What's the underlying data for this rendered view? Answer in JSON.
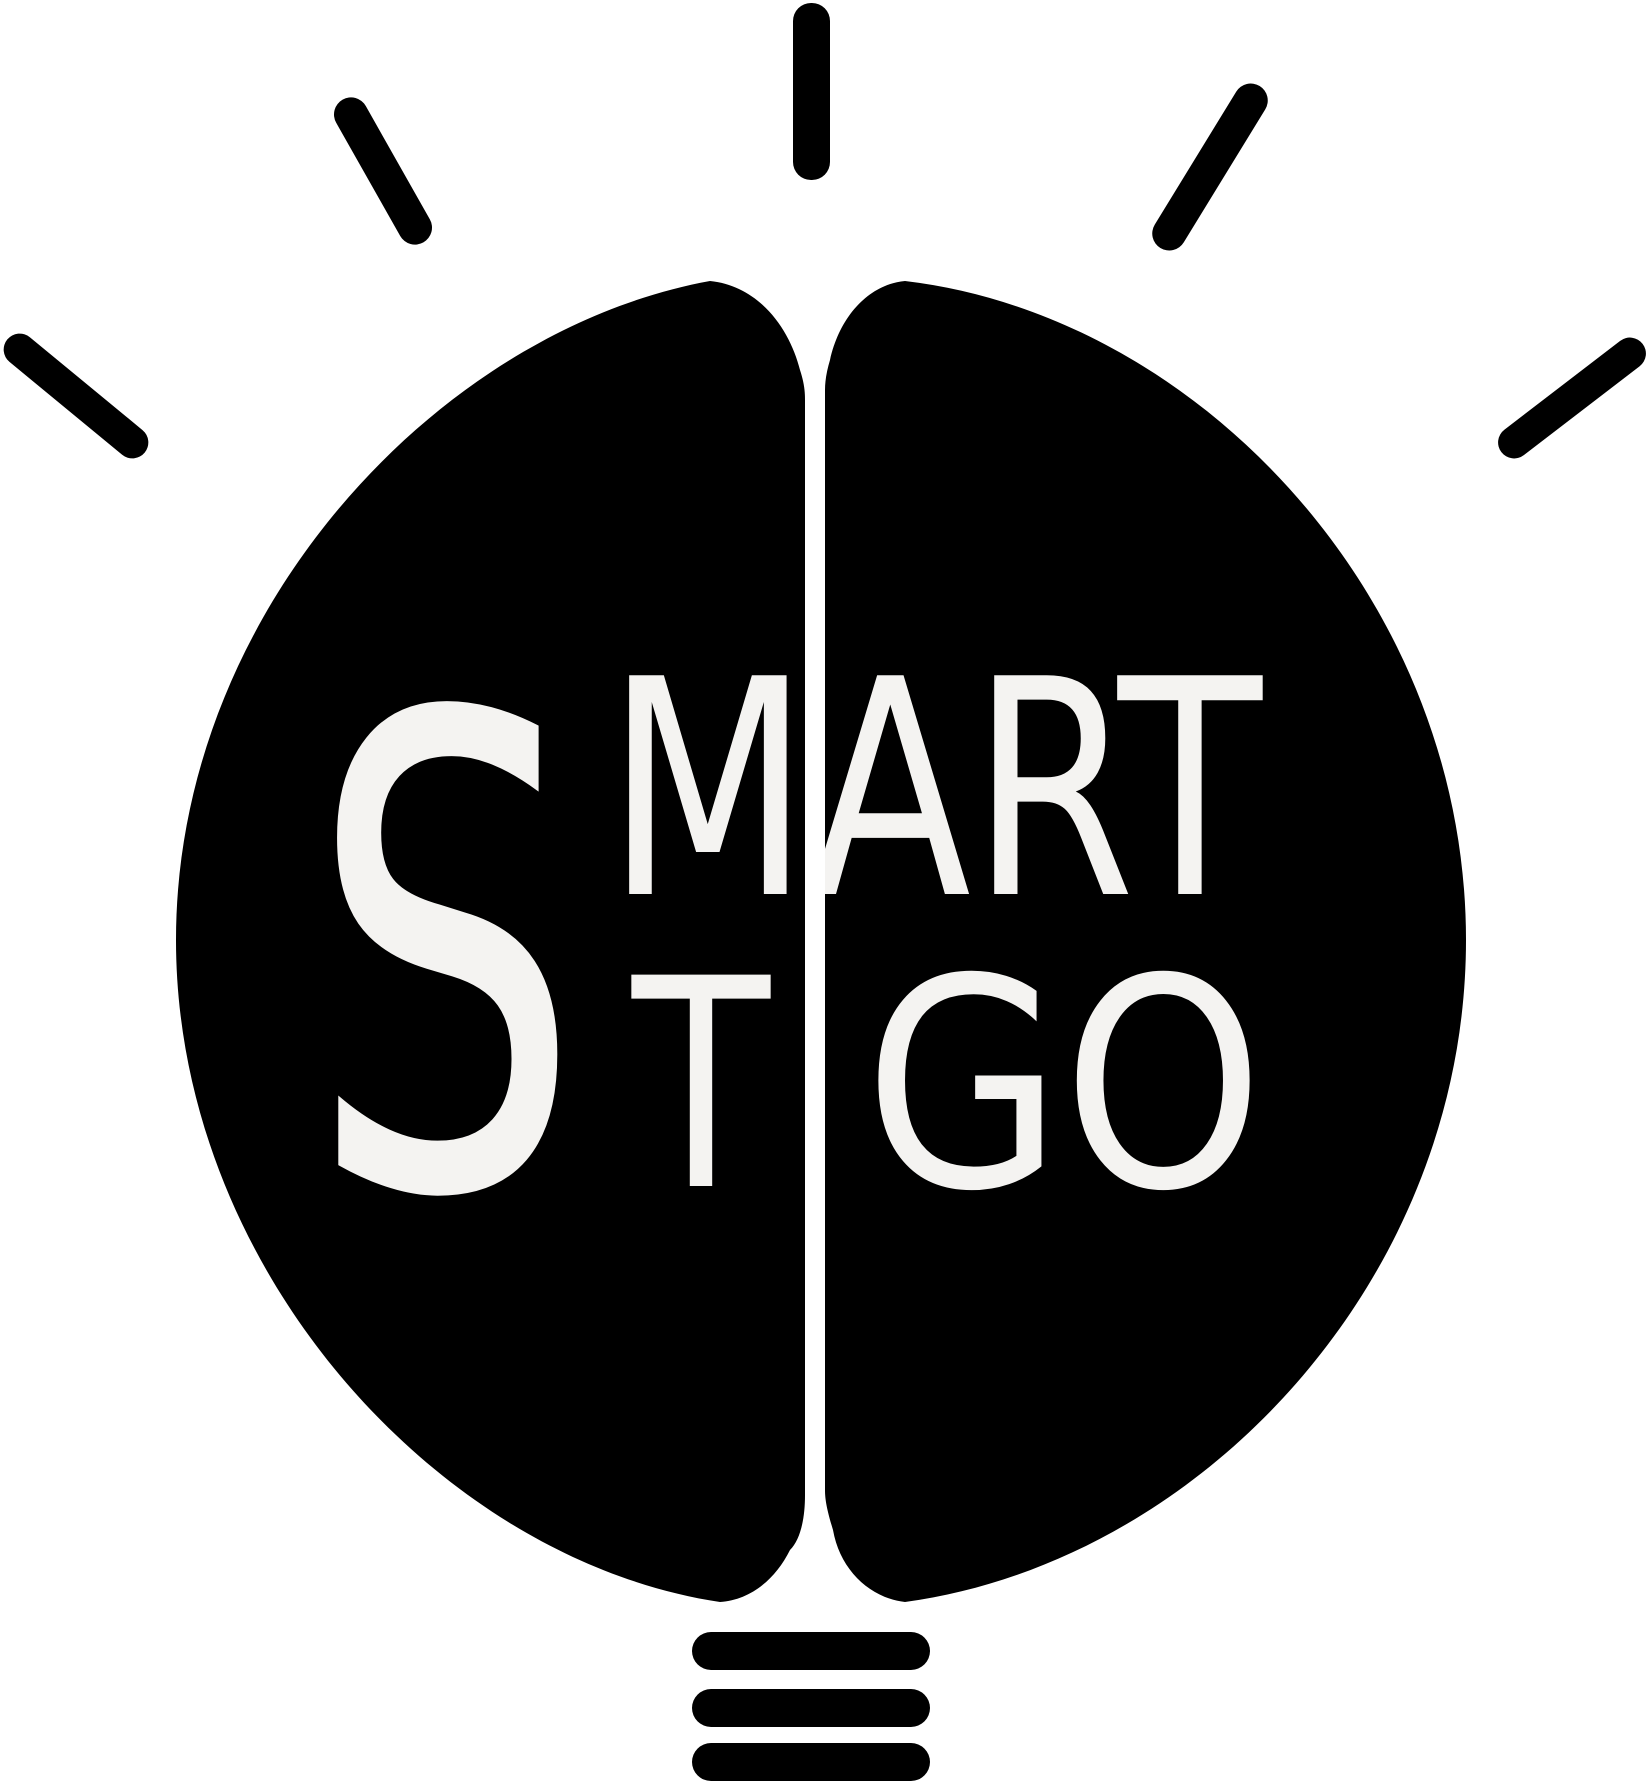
{
  "logo": {
    "wordmark": {
      "big_letter": "S",
      "line1_rest": "MART",
      "line2_rest": "T",
      "line2_right": "GO"
    },
    "colors": {
      "background": "#ffffff",
      "bulb": "#000000",
      "lettering": "#f4f3f1"
    }
  }
}
